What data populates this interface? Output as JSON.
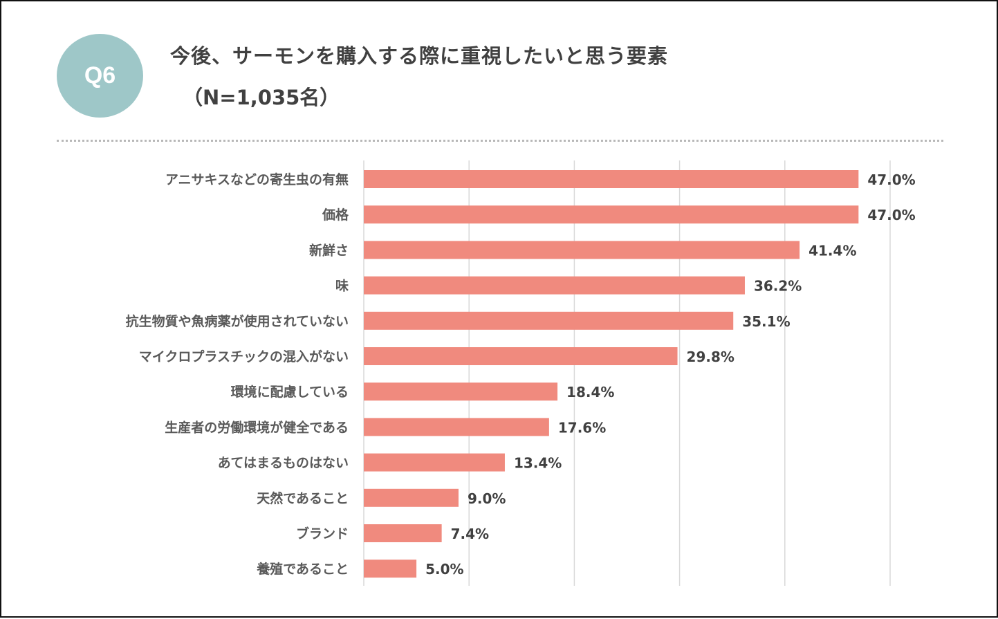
{
  "badge": "Q6",
  "title": "今後、サーモンを購入する際に重視したいと思う要素",
  "subtitle": "（N=1,035名）",
  "colors": {
    "bar": "#f08a7e",
    "badge": "#9ec7c8",
    "grid": "#d9d9d9",
    "text": "#404040"
  },
  "chart_data": {
    "type": "bar",
    "orientation": "horizontal",
    "title": "今後、サーモンを購入する際に重視したいと思う要素",
    "xlabel": "",
    "ylabel": "",
    "xlim": [
      0,
      50
    ],
    "grid": true,
    "categories": [
      "アニサキスなどの寄生虫の有無",
      "価格",
      "新鮮さ",
      "味",
      "抗生物質や魚病薬が使用されていない",
      "マイクロプラスチックの混入がない",
      "環境に配慮している",
      "生産者の労働環境が健全である",
      "あてはまるものはない",
      "天然であること",
      "ブランド",
      "養殖であること"
    ],
    "values": [
      47.0,
      47.0,
      41.4,
      36.2,
      35.1,
      29.8,
      18.4,
      17.6,
      13.4,
      9.0,
      7.4,
      5.0
    ],
    "value_labels": [
      "47.0%",
      "47.0%",
      "41.4%",
      "36.2%",
      "35.1%",
      "29.8%",
      "18.4%",
      "17.6%",
      "13.4%",
      "9.0%",
      "7.4%",
      "5.0%"
    ]
  }
}
